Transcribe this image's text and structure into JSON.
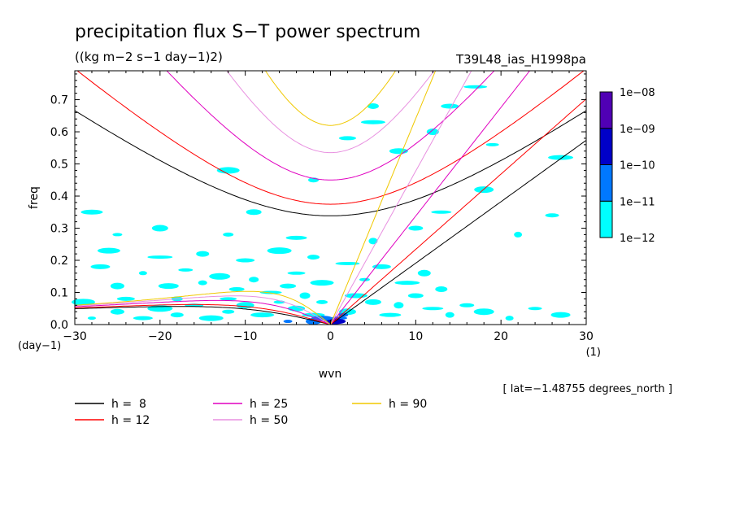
{
  "chart_data": {
    "type": "heatmap",
    "title": "precipitation flux S−T power spectrum",
    "subtitle": "((kg m−2 s−1 day−1)2)",
    "run_label": "T39L48_ias_H1998pa",
    "xlabel": "wvn",
    "ylabel": "freq",
    "x_unit": "(1)",
    "y_unit": "(day−1)",
    "xlim": [
      -30,
      30
    ],
    "ylim": [
      0,
      0.79
    ],
    "x_ticks": [
      -30,
      -20,
      -10,
      0,
      10,
      20,
      30
    ],
    "x_tick_labels": [
      "−30",
      "−20",
      "−10",
      "0",
      "10",
      "20",
      "30"
    ],
    "y_ticks": [
      0.0,
      0.1,
      0.2,
      0.3,
      0.4,
      0.5,
      0.6,
      0.7
    ],
    "y_tick_labels": [
      "0.0",
      "0.1",
      "0.2",
      "0.3",
      "0.4",
      "0.5",
      "0.6",
      "0.7"
    ],
    "annotation": "[ lat=−1.48755 degrees_north ]",
    "colorbar": {
      "levels": [
        "1e−12",
        "1e−11",
        "1e−10",
        "1e−09",
        "1e−08"
      ],
      "colors": [
        "#00ffff",
        "#0078ff",
        "#0000c8",
        "#5000b4"
      ]
    },
    "dispersion_curves": [
      {
        "name": "h =  8",
        "h": 8,
        "color": "#000000"
      },
      {
        "name": "h = 12",
        "h": 12,
        "color": "#ff0000"
      },
      {
        "name": "h = 25",
        "h": 25,
        "color": "#e000c0"
      },
      {
        "name": "h = 50",
        "h": 50,
        "color": "#e890e0"
      },
      {
        "name": "h = 90",
        "h": 90,
        "color": "#f0c800"
      }
    ],
    "series": [
      {
        "name": "h =  8",
        "x": [
          -30,
          -20,
          -10,
          -2,
          10,
          20,
          30
        ],
        "y": [
          0.63,
          0.5,
          0.37,
          0.33,
          0.4,
          0.48,
          0.55
        ]
      },
      {
        "name": "h = 12",
        "x": [
          -30,
          -20,
          -10,
          -2,
          10,
          20,
          30
        ],
        "y": [
          0.77,
          0.62,
          0.45,
          0.37,
          0.48,
          0.58,
          0.68
        ]
      },
      {
        "name": "h = 25",
        "x": [
          -20,
          -10,
          -2,
          10,
          20
        ],
        "y": [
          0.79,
          0.55,
          0.44,
          0.53,
          0.79
        ]
      },
      {
        "name": "h = 50",
        "x": [
          -20,
          -10,
          -2,
          10,
          20
        ],
        "y": [
          0.79,
          0.63,
          0.52,
          0.65,
          0.79
        ]
      },
      {
        "name": "h = 90",
        "x": [
          -10,
          -2,
          7
        ],
        "y": [
          0.79,
          0.61,
          0.79
        ]
      }
    ],
    "spectral_patches": [
      {
        "x": -28,
        "y": 0.02,
        "level": 0
      },
      {
        "x": -25,
        "y": 0.04,
        "level": 0
      },
      {
        "x": -22,
        "y": 0.02,
        "level": 0
      },
      {
        "x": -20,
        "y": 0.05,
        "level": 0
      },
      {
        "x": -18,
        "y": 0.03,
        "level": 0
      },
      {
        "x": -16,
        "y": 0.06,
        "level": 0
      },
      {
        "x": -14,
        "y": 0.02,
        "level": 0
      },
      {
        "x": -12,
        "y": 0.04,
        "level": 0
      },
      {
        "x": -10,
        "y": 0.06,
        "level": 0
      },
      {
        "x": -8,
        "y": 0.03,
        "level": 0
      },
      {
        "x": -6,
        "y": 0.07,
        "level": 0
      },
      {
        "x": -4,
        "y": 0.05,
        "level": 0
      },
      {
        "x": -2,
        "y": 0.03,
        "level": 0
      },
      {
        "x": -3,
        "y": 0.09,
        "level": 0
      },
      {
        "x": -5,
        "y": 0.12,
        "level": 0
      },
      {
        "x": -7,
        "y": 0.1,
        "level": 0
      },
      {
        "x": -9,
        "y": 0.14,
        "level": 0
      },
      {
        "x": -11,
        "y": 0.11,
        "level": 0
      },
      {
        "x": -13,
        "y": 0.15,
        "level": 0
      },
      {
        "x": -15,
        "y": 0.13,
        "level": 0
      },
      {
        "x": -17,
        "y": 0.17,
        "level": 0
      },
      {
        "x": -19,
        "y": 0.12,
        "level": 0
      },
      {
        "x": -22,
        "y": 0.16,
        "level": 0
      },
      {
        "x": -25,
        "y": 0.12,
        "level": 0
      },
      {
        "x": -27,
        "y": 0.18,
        "level": 0
      },
      {
        "x": -20,
        "y": 0.21,
        "level": 0
      },
      {
        "x": -15,
        "y": 0.22,
        "level": 0
      },
      {
        "x": -10,
        "y": 0.2,
        "level": 0
      },
      {
        "x": -6,
        "y": 0.23,
        "level": 0
      },
      {
        "x": -2,
        "y": 0.21,
        "level": 0
      },
      {
        "x": -4,
        "y": 0.16,
        "level": 0
      },
      {
        "x": -1,
        "y": 0.13,
        "level": 0
      },
      {
        "x": -1,
        "y": 0.07,
        "level": 0
      },
      {
        "x": 2,
        "y": 0.04,
        "level": 0
      },
      {
        "x": 3,
        "y": 0.09,
        "level": 0
      },
      {
        "x": 4,
        "y": 0.14,
        "level": 0
      },
      {
        "x": 5,
        "y": 0.07,
        "level": 0
      },
      {
        "x": 7,
        "y": 0.03,
        "level": 0
      },
      {
        "x": 8,
        "y": 0.06,
        "level": 0
      },
      {
        "x": 10,
        "y": 0.09,
        "level": 0
      },
      {
        "x": 12,
        "y": 0.05,
        "level": 0
      },
      {
        "x": 14,
        "y": 0.03,
        "level": 0
      },
      {
        "x": 16,
        "y": 0.06,
        "level": 0
      },
      {
        "x": 18,
        "y": 0.04,
        "level": 0
      },
      {
        "x": 21,
        "y": 0.02,
        "level": 0
      },
      {
        "x": 24,
        "y": 0.05,
        "level": 0
      },
      {
        "x": 27,
        "y": 0.03,
        "level": 0
      },
      {
        "x": 9,
        "y": 0.13,
        "level": 0
      },
      {
        "x": 11,
        "y": 0.16,
        "level": 0
      },
      {
        "x": 6,
        "y": 0.18,
        "level": 0
      },
      {
        "x": 2,
        "y": 0.19,
        "level": 0
      },
      {
        "x": 13,
        "y": 0.11,
        "level": 0
      },
      {
        "x": -24,
        "y": 0.08,
        "level": 0
      },
      {
        "x": -29,
        "y": 0.07,
        "level": 0
      },
      {
        "x": -18,
        "y": 0.08,
        "level": 0
      },
      {
        "x": -12,
        "y": 0.08,
        "level": 0
      },
      {
        "x": -26,
        "y": 0.23,
        "level": 0
      },
      {
        "x": -12,
        "y": 0.28,
        "level": 0
      },
      {
        "x": -20,
        "y": 0.3,
        "level": 0
      },
      {
        "x": -28,
        "y": 0.35,
        "level": 0
      },
      {
        "x": -25,
        "y": 0.28,
        "level": 0
      },
      {
        "x": -9,
        "y": 0.35,
        "level": 0
      },
      {
        "x": -4,
        "y": 0.27,
        "level": 0
      },
      {
        "x": 5,
        "y": 0.26,
        "level": 0
      },
      {
        "x": 10,
        "y": 0.3,
        "level": 0
      },
      {
        "x": 13,
        "y": 0.35,
        "level": 0
      },
      {
        "x": 22,
        "y": 0.28,
        "level": 0
      },
      {
        "x": 26,
        "y": 0.34,
        "level": 0
      },
      {
        "x": 18,
        "y": 0.42,
        "level": 0
      },
      {
        "x": 27,
        "y": 0.52,
        "level": 0
      },
      {
        "x": 19,
        "y": 0.56,
        "level": 0
      },
      {
        "x": 8,
        "y": 0.54,
        "level": 0
      },
      {
        "x": 5,
        "y": 0.63,
        "level": 0
      },
      {
        "x": 12,
        "y": 0.6,
        "level": 0
      },
      {
        "x": 14,
        "y": 0.68,
        "level": 0
      },
      {
        "x": 17,
        "y": 0.74,
        "level": 0
      },
      {
        "x": 5,
        "y": 0.68,
        "level": 0
      },
      {
        "x": 2,
        "y": 0.58,
        "level": 0
      },
      {
        "x": -12,
        "y": 0.48,
        "level": 0
      },
      {
        "x": -2,
        "y": 0.45,
        "level": 0
      },
      {
        "x": 1,
        "y": 0.02,
        "level": 1
      },
      {
        "x": 0.5,
        "y": 0.01,
        "level": 2
      },
      {
        "x": 1.5,
        "y": 0.03,
        "level": 1
      },
      {
        "x": -2,
        "y": 0.01,
        "level": 1
      },
      {
        "x": -1,
        "y": 0.02,
        "level": 1
      },
      {
        "x": -5,
        "y": 0.01,
        "level": 1
      }
    ]
  },
  "legend": {
    "entries": [
      {
        "label": "h =  8",
        "color": "#000000"
      },
      {
        "label": "h = 25",
        "color": "#e000c0"
      },
      {
        "label": "h = 90",
        "color": "#f0c800"
      },
      {
        "label": "h = 12",
        "color": "#ff0000"
      },
      {
        "label": "h = 50",
        "color": "#e890e0"
      }
    ]
  }
}
